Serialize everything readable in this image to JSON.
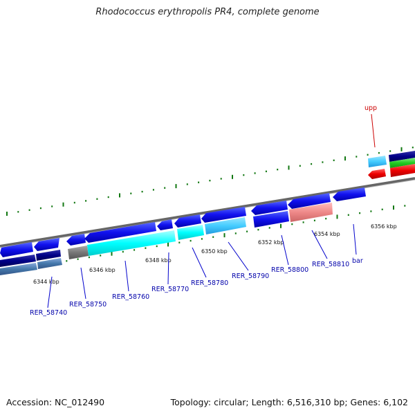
{
  "title": "Rhodococcus erythropolis PR4, complete genome",
  "footer": {
    "accession": "Accession: NC_012490",
    "topology": "Topology: circular; Length: 6,516,310 bp; Genes: 6,102"
  },
  "scale_ticks": [
    "6344 kbp",
    "6346 kbp",
    "6348 kbp",
    "6350 kbp",
    "6352 kbp",
    "6354 kbp",
    "6356 kbp"
  ],
  "gene_labels": [
    "RER_58740",
    "RER_58750",
    "RER_58760",
    "RER_58770",
    "RER_58780",
    "RER_58790",
    "RER_58800",
    "RER_58810",
    "bar",
    "upp"
  ],
  "colors": {
    "gene_blue": "#1111ee",
    "cyan": "#00ffff",
    "light_blue": "#55ccff",
    "dark_navy": "#000088",
    "steel": "#4477aa",
    "red": "#ee0000",
    "pink": "#ee8888",
    "green": "#22cc22",
    "gray": "#777777",
    "tick_green": "#117711",
    "label_blue": "#0000aa",
    "upp_red": "#cc0000"
  }
}
